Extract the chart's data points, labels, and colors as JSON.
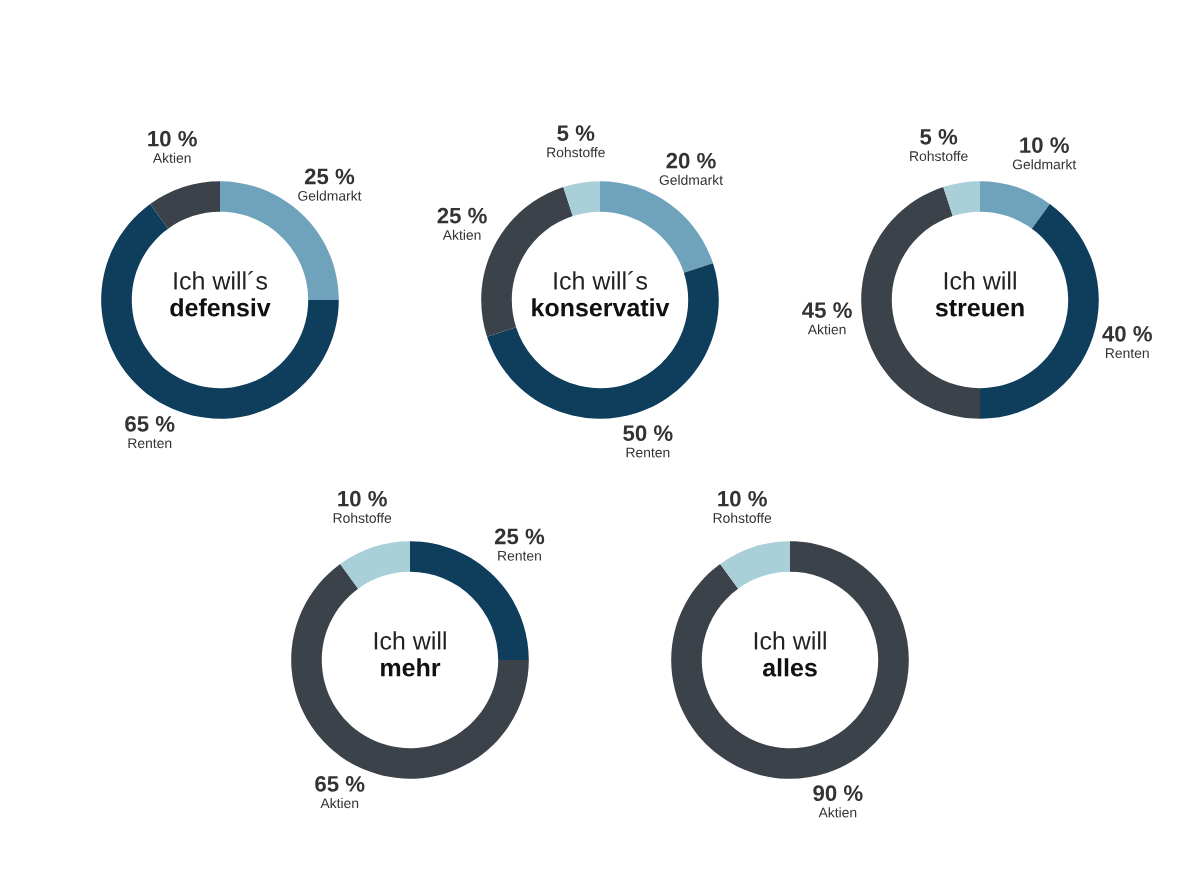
{
  "chart_data": [
    {
      "type": "donut",
      "title": "Ich will´s",
      "subtitle": "defensiv",
      "categories": [
        "Geldmarkt",
        "Renten",
        "Aktien"
      ],
      "values": [
        25,
        65,
        10
      ],
      "value_labels": [
        "25 %",
        "65 %",
        "10 %"
      ],
      "colors": [
        "#6fa3bb",
        "#0f3d5c",
        "#3b4249"
      ]
    },
    {
      "type": "donut",
      "title": "Ich will´s",
      "subtitle": "konservativ",
      "categories": [
        "Geldmarkt",
        "Renten",
        "Aktien",
        "Rohstoffe"
      ],
      "values": [
        20,
        50,
        25,
        5
      ],
      "value_labels": [
        "20 %",
        "50 %",
        "25 %",
        "5 %"
      ],
      "colors": [
        "#6fa3bb",
        "#0f3d5c",
        "#3b4249",
        "#a9cfd9"
      ]
    },
    {
      "type": "donut",
      "title": "Ich will",
      "subtitle": "streuen",
      "categories": [
        "Geldmarkt",
        "Renten",
        "Aktien",
        "Rohstoffe"
      ],
      "values": [
        10,
        40,
        45,
        5
      ],
      "value_labels": [
        "10 %",
        "40 %",
        "45 %",
        "5 %"
      ],
      "colors": [
        "#6fa3bb",
        "#0f3d5c",
        "#3b4249",
        "#a9cfd9"
      ]
    },
    {
      "type": "donut",
      "title": "Ich will",
      "subtitle": "mehr",
      "categories": [
        "Renten",
        "Aktien",
        "Rohstoffe"
      ],
      "values": [
        25,
        65,
        10
      ],
      "value_labels": [
        "25 %",
        "65 %",
        "10 %"
      ],
      "colors": [
        "#0f3d5c",
        "#3b4249",
        "#a9cfd9"
      ]
    },
    {
      "type": "donut",
      "title": "Ich will",
      "subtitle": "alles",
      "categories": [
        "Aktien",
        "Rohstoffe"
      ],
      "values": [
        90,
        10
      ],
      "value_labels": [
        "90 %",
        "10 %"
      ],
      "colors": [
        "#3b4249",
        "#a9cfd9"
      ]
    }
  ]
}
